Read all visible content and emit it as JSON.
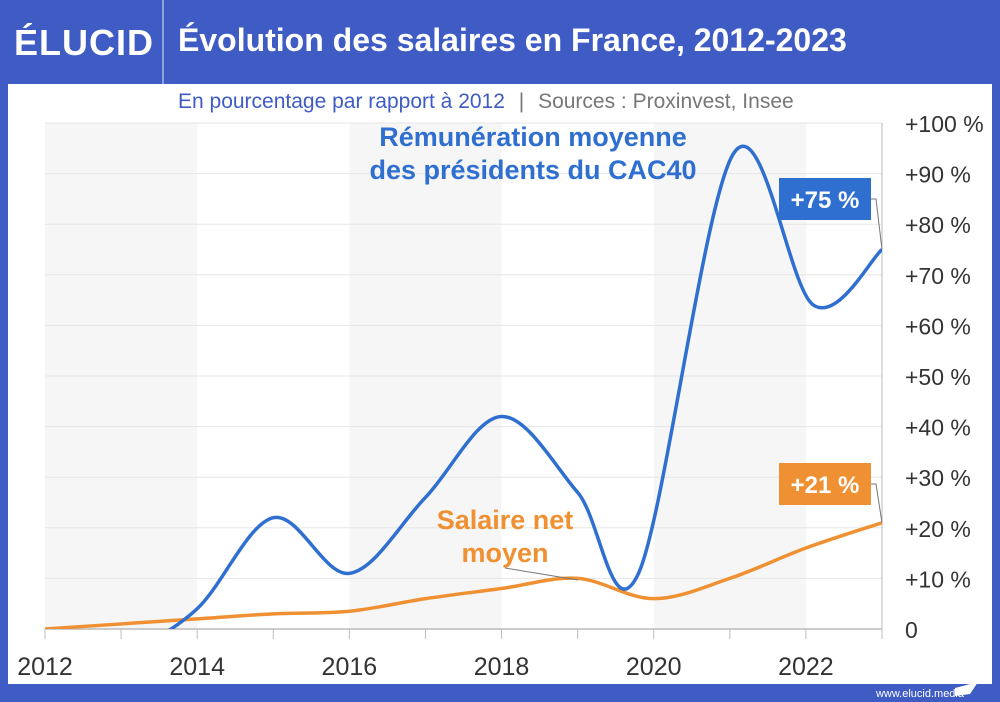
{
  "header": {
    "logo": "ÉLUCID",
    "title": "Évolution des salaires en France, 2012-2023"
  },
  "subtitle": {
    "text": "En pourcentage par rapport à 2012",
    "separator": "|",
    "sources": "Sources : Proxinvest, Insee"
  },
  "footer": {
    "url": "www.elucid.media"
  },
  "colors": {
    "blue": "#2f6fd0",
    "orange": "#ef9032",
    "header": "#3f5bc4",
    "band": "#f6f6f6"
  },
  "chart_data": {
    "type": "line",
    "title": "Évolution des salaires en France, 2012-2023",
    "subtitle": "En pourcentage par rapport à 2012",
    "xlim": [
      2012,
      2023
    ],
    "ylim": [
      0,
      100
    ],
    "x_ticks": [
      "2012",
      "2014",
      "2016",
      "2018",
      "2020",
      "2022"
    ],
    "y_ticks": [
      "0",
      "+10 %",
      "+20 %",
      "+30 %",
      "+40 %",
      "+50 %",
      "+60 %",
      "+70 %",
      "+80 %",
      "+90 %",
      "+100 %"
    ],
    "y_axis_side": "right",
    "grid": true,
    "series": [
      {
        "name": "Rémunération moyenne des présidents du CAC40",
        "label_lines": [
          "Rémunération moyenne",
          "des présidents du CAC40"
        ],
        "color": "#2f6fd0",
        "points": [
          [
            2013,
            -6
          ],
          [
            2014,
            4
          ],
          [
            2015,
            22
          ],
          [
            2016,
            11
          ],
          [
            2017,
            26
          ],
          [
            2018,
            42
          ],
          [
            2019,
            27
          ],
          [
            2019.8,
            11
          ],
          [
            2021.05,
            94
          ],
          [
            2022.1,
            64
          ],
          [
            2023,
            75
          ]
        ],
        "end_label": "+75 %"
      },
      {
        "name": "Salaire net moyen",
        "label_lines": [
          "Salaire net",
          "moyen"
        ],
        "color": "#ef9032",
        "points": [
          [
            2012,
            0
          ],
          [
            2013,
            1
          ],
          [
            2014,
            2
          ],
          [
            2015,
            3
          ],
          [
            2016,
            3.5
          ],
          [
            2017,
            6
          ],
          [
            2018,
            8
          ],
          [
            2019,
            10
          ],
          [
            2020,
            6
          ],
          [
            2021,
            10
          ],
          [
            2022,
            16
          ],
          [
            2023,
            21
          ]
        ],
        "end_label": "+21 %"
      }
    ]
  }
}
